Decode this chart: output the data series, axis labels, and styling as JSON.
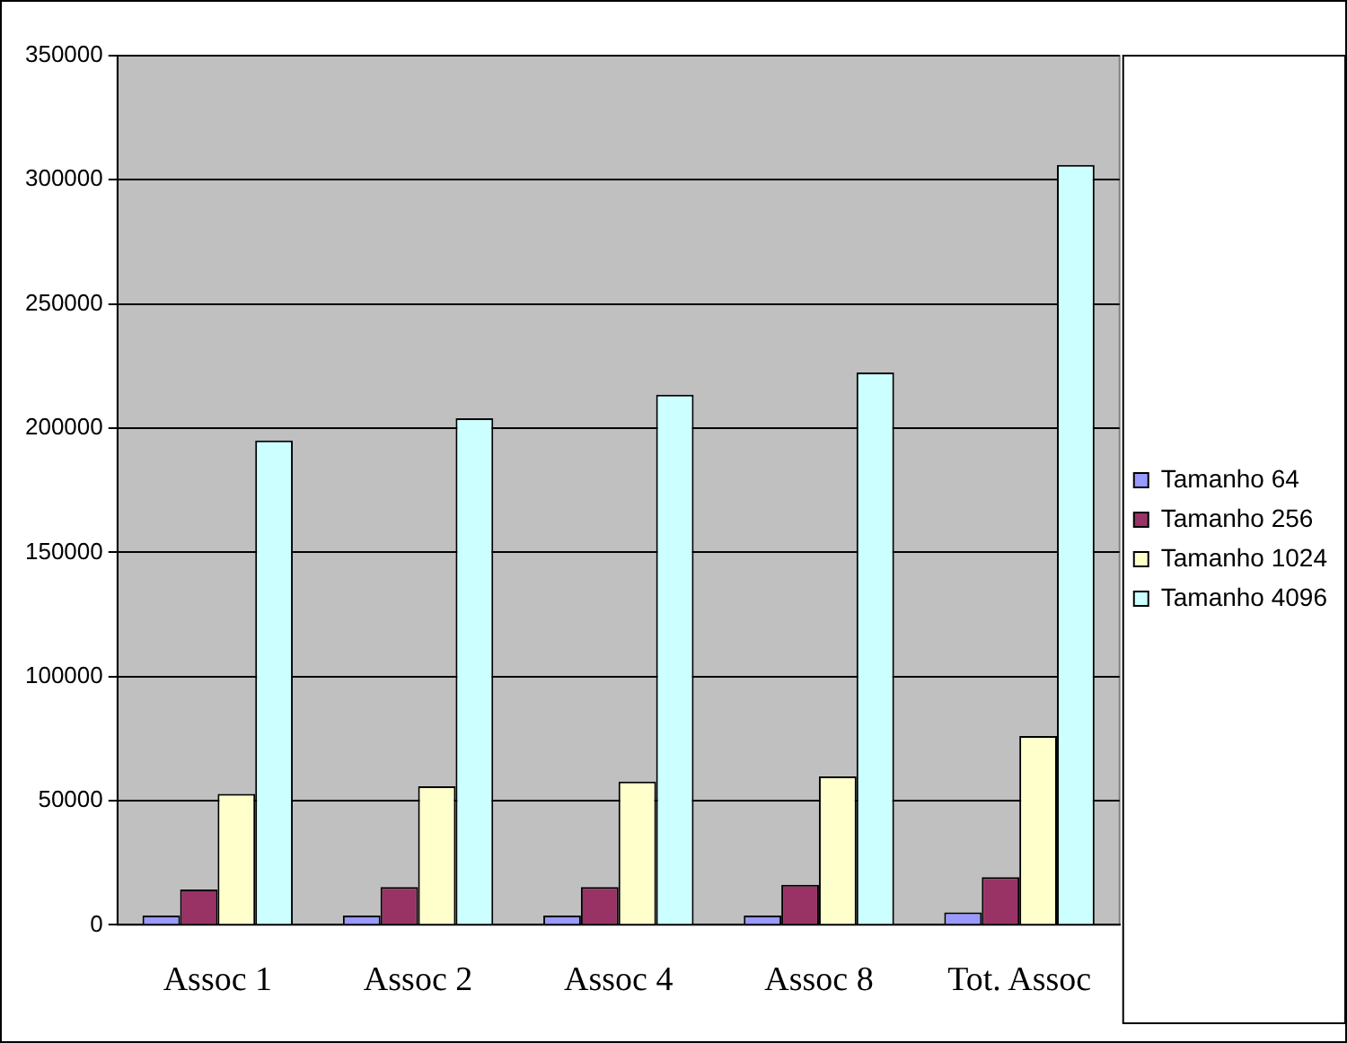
{
  "chart_data": {
    "type": "bar",
    "categories": [
      "Assoc 1",
      "Assoc 2",
      "Assoc 4",
      "Assoc 8",
      "Tot. Assoc"
    ],
    "series": [
      {
        "name": "Tamanho 64",
        "color": "#9999ff",
        "values": [
          3800,
          3800,
          3800,
          3800,
          5000
        ]
      },
      {
        "name": "Tamanho 256",
        "color": "#993366",
        "values": [
          14200,
          15200,
          15200,
          16100,
          19200
        ]
      },
      {
        "name": "Tamanho 1024",
        "color": "#ffffcc",
        "values": [
          52700,
          55800,
          57700,
          59800,
          76000
        ]
      },
      {
        "name": "Tamanho 4096",
        "color": "#ccffff",
        "values": [
          195000,
          204000,
          213500,
          222400,
          306000
        ]
      }
    ],
    "ylim": [
      0,
      350000
    ],
    "yticks": [
      0,
      50000,
      100000,
      150000,
      200000,
      250000,
      300000,
      350000
    ],
    "grid": "y",
    "legend": "right"
  }
}
